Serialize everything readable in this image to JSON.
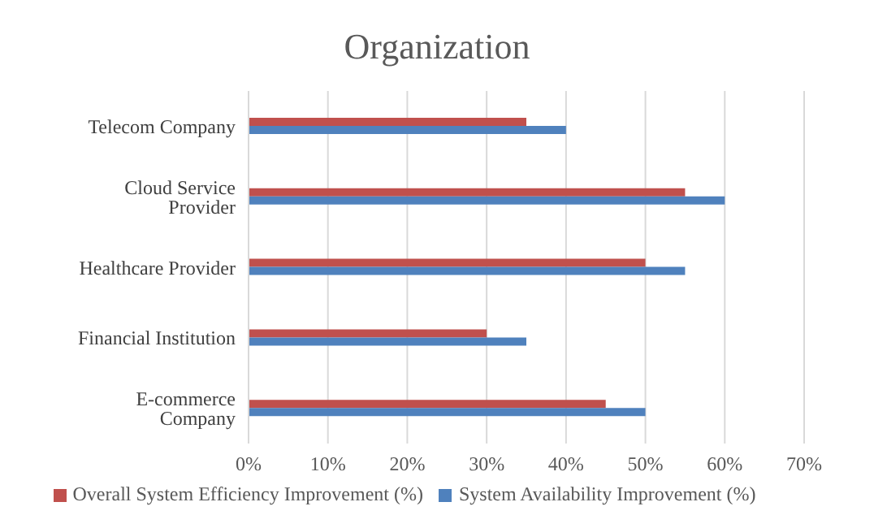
{
  "chart_data": {
    "type": "bar",
    "orientation": "horizontal",
    "title": "Organization",
    "categories": [
      "Telecom Company",
      "Cloud Service Provider",
      "Healthcare Provider",
      "Financial Institution",
      "E-commerce Company"
    ],
    "series": [
      {
        "name": "Overall System Efficiency Improvement (%)",
        "color": "#c0504d",
        "values": [
          35,
          55,
          50,
          30,
          45
        ]
      },
      {
        "name": "System Availability Improvement (%)",
        "color": "#4f81bd",
        "values": [
          40,
          60,
          55,
          35,
          50
        ]
      }
    ],
    "xlim": [
      0,
      70
    ],
    "xticks": [
      {
        "value": 0,
        "label": "0%"
      },
      {
        "value": 10,
        "label": "10%"
      },
      {
        "value": 20,
        "label": "20%"
      },
      {
        "value": 30,
        "label": "30%"
      },
      {
        "value": 40,
        "label": "40%"
      },
      {
        "value": 50,
        "label": "50%"
      },
      {
        "value": 60,
        "label": "60%"
      },
      {
        "value": 70,
        "label": "70%"
      }
    ],
    "grid": "x",
    "legend": "bottom"
  }
}
